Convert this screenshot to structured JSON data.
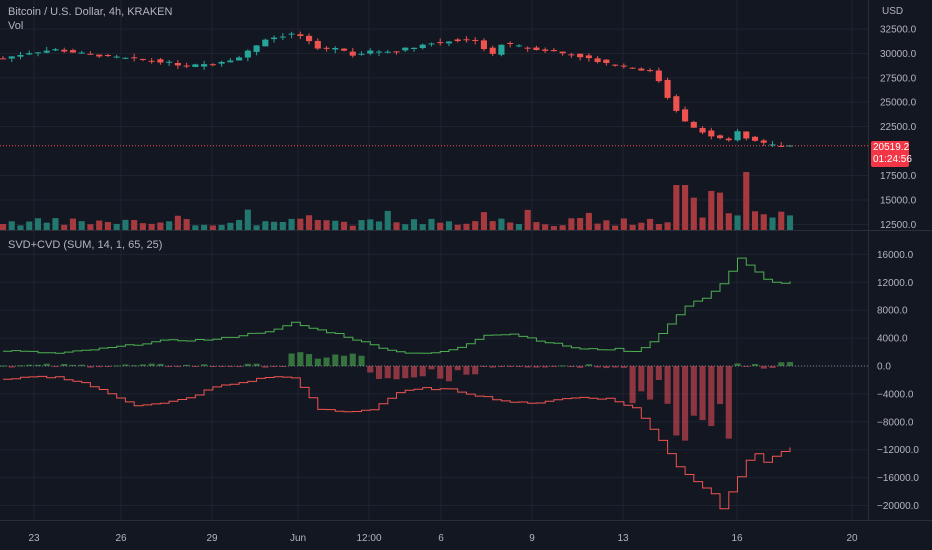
{
  "main_legend": {
    "symbol": "Bitcoin / U.S. Dollar, 4h, KRAKEN",
    "volume": "Vol"
  },
  "currency": "USD",
  "last_price": {
    "value": "20519.2",
    "countdown": "01:24:56"
  },
  "indicator_legend": "SVD+CVD (SUM, 14, 1, 65, 25)",
  "colors": {
    "background": "#131722",
    "up": "#26a69a",
    "down": "#ef5350",
    "grid": "#1f2330",
    "axis_text": "#b2b5be",
    "up_volume": "#22786f",
    "down_volume": "#a63a3f",
    "svd_up": "#4caf50",
    "svd_down": "#f0505c",
    "cvd_up_line": "#4caf50",
    "cvd_down_line": "#ef5350"
  },
  "chart_data": [
    {
      "type": "candlestick",
      "title": "Bitcoin / U.S. Dollar, 4h, KRAKEN",
      "ylabel": "USD",
      "y_ticks": [
        "32500.0",
        "30000.0",
        "27500.0",
        "25000.0",
        "22500.0",
        "17500.0",
        "15000.0",
        "12500.0"
      ],
      "x_ticks": [
        "23",
        "26",
        "29",
        "Jun",
        "12:00",
        "6",
        "9",
        "13",
        "16",
        "20"
      ],
      "price_path": [
        [
          0,
          29500
        ],
        [
          3,
          30100
        ],
        [
          6,
          30400
        ],
        [
          9,
          30000
        ],
        [
          12,
          29700
        ],
        [
          15,
          29400
        ],
        [
          18,
          29200
        ],
        [
          21,
          28700
        ],
        [
          24,
          29000
        ],
        [
          27,
          29600
        ],
        [
          30,
          31500
        ],
        [
          33,
          32000
        ],
        [
          34,
          31800
        ],
        [
          36,
          30500
        ],
        [
          38,
          30600
        ],
        [
          40,
          29900
        ],
        [
          42,
          30200
        ],
        [
          45,
          30300
        ],
        [
          48,
          30900
        ],
        [
          51,
          31300
        ],
        [
          54,
          31400
        ],
        [
          55,
          30500
        ],
        [
          56,
          29900
        ],
        [
          57,
          31000
        ],
        [
          60,
          30600
        ],
        [
          63,
          30200
        ],
        [
          66,
          29700
        ],
        [
          69,
          29000
        ],
        [
          72,
          28500
        ],
        [
          74,
          28200
        ],
        [
          75,
          27200
        ],
        [
          76,
          25500
        ],
        [
          77,
          24200
        ],
        [
          78,
          23100
        ],
        [
          79,
          22400
        ],
        [
          80,
          22000
        ],
        [
          81,
          21500
        ],
        [
          82,
          21200
        ],
        [
          83,
          21000
        ],
        [
          84,
          22000
        ],
        [
          85,
          21300
        ],
        [
          86,
          21000
        ],
        [
          87,
          20800
        ],
        [
          88,
          20600
        ],
        [
          89,
          20500
        ],
        [
          90,
          20519.2
        ]
      ],
      "volume_level": "low until 13 Jun, then spikes"
    },
    {
      "type": "line",
      "title": "SVD+CVD (SUM, 14, 1, 65, 25)",
      "y_ticks": [
        "16000.0",
        "12000.0",
        "8000.0",
        "4000.0",
        "0.0",
        "−4000.0",
        "−8000.0",
        "−12000.0",
        "−16000.0",
        "−20000.0"
      ],
      "series": [
        {
          "values": [
            [
              0,
              2200
            ],
            [
              6,
              1800
            ],
            [
              12,
              2600
            ],
            [
              18,
              3600
            ],
            [
              24,
              3800
            ],
            [
              28,
              4600
            ],
            [
              31,
              5200
            ],
            [
              33,
              6200
            ],
            [
              35,
              5400
            ],
            [
              38,
              4600
            ],
            [
              42,
              3000
            ],
            [
              45,
              2000
            ],
            [
              49,
              1800
            ],
            [
              52,
              2600
            ],
            [
              55,
              4500
            ],
            [
              58,
              4600
            ],
            [
              62,
              3400
            ],
            [
              66,
              2400
            ],
            [
              70,
              2400
            ],
            [
              72,
              2000
            ],
            [
              74,
              3500
            ],
            [
              76,
              6000
            ],
            [
              78,
              8600
            ],
            [
              80,
              9800
            ],
            [
              82,
              11800
            ],
            [
              84,
              15400
            ],
            [
              85,
              14400
            ],
            [
              87,
              12400
            ],
            [
              89,
              11800
            ],
            [
              90,
              12200
            ]
          ]
        },
        {
          "values": [
            [
              0,
              -2000
            ],
            [
              3,
              -1600
            ],
            [
              6,
              -1600
            ],
            [
              9,
              -2400
            ],
            [
              12,
              -4000
            ],
            [
              15,
              -5600
            ],
            [
              18,
              -5400
            ],
            [
              21,
              -4600
            ],
            [
              24,
              -3000
            ],
            [
              27,
              -2400
            ],
            [
              30,
              -1600
            ],
            [
              33,
              -1600
            ],
            [
              36,
              -6200
            ],
            [
              39,
              -6600
            ],
            [
              42,
              -6200
            ],
            [
              45,
              -3800
            ],
            [
              48,
              -3200
            ],
            [
              51,
              -3400
            ],
            [
              54,
              -4200
            ],
            [
              57,
              -5000
            ],
            [
              60,
              -5400
            ],
            [
              63,
              -4800
            ],
            [
              66,
              -4500
            ],
            [
              69,
              -4700
            ],
            [
              72,
              -6000
            ],
            [
              75,
              -10600
            ],
            [
              77,
              -14400
            ],
            [
              79,
              -16600
            ],
            [
              81,
              -18200
            ],
            [
              82,
              -20400
            ],
            [
              83,
              -18000
            ],
            [
              84,
              -16000
            ],
            [
              85,
              -13500
            ],
            [
              86,
              -12500
            ],
            [
              87,
              -13800
            ],
            [
              89,
              -12200
            ],
            [
              90,
              -11800
            ]
          ]
        }
      ],
      "histogram_level": "small green bars near 0 until 10 Jun, large red bars 12–15 Jun"
    }
  ]
}
